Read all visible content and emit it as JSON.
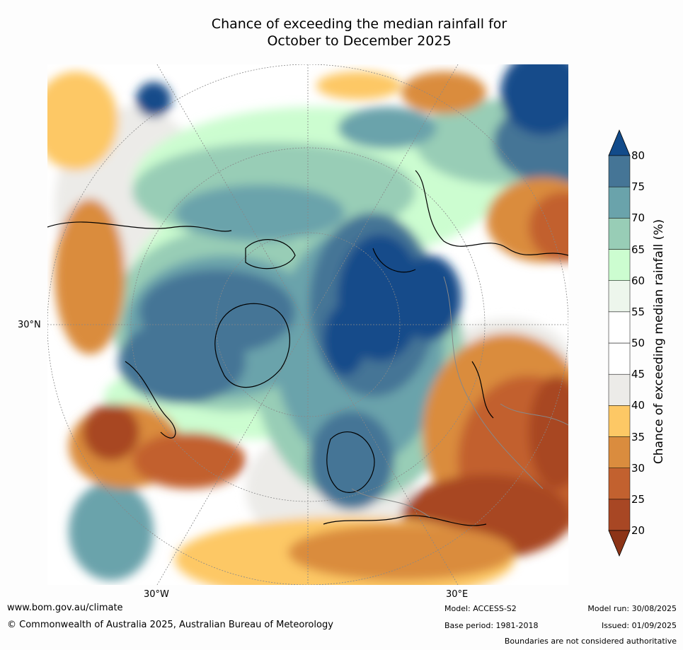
{
  "title": {
    "line1": "Chance of exceeding the median rainfall for",
    "line2": "October to December 2025"
  },
  "axis_labels": {
    "lat_30n": "30°N",
    "lon_30w": "30°W",
    "lon_30e": "30°E"
  },
  "legend": {
    "title": "Chance of exceeding median rainfall (%)",
    "ticks": [
      "20",
      "25",
      "30",
      "35",
      "40",
      "45",
      "50",
      "55",
      "60",
      "65",
      "70",
      "75",
      "80"
    ],
    "colors": [
      "#8c3417",
      "#a84724",
      "#c2612f",
      "#da8c3e",
      "#fdc865",
      "#ecebe8",
      "#ffffff",
      "#ffffff",
      "#edf6ec",
      "#ccfdd0",
      "#98cdb6",
      "#6aa3ab",
      "#457596",
      "#124b8a"
    ]
  },
  "footer": {
    "website": "www.bom.gov.au/climate",
    "copyright": "© Commonwealth of Australia 2025, Australian Bureau of Meteorology",
    "model": "Model: ACCESS-S2",
    "base_period": "Base period: 1981-2018",
    "model_run": "Model run: 30/08/2025",
    "issued": "Issued: 01/09/2025",
    "disclaimer": "Boundaries are not considered authoritative"
  }
}
